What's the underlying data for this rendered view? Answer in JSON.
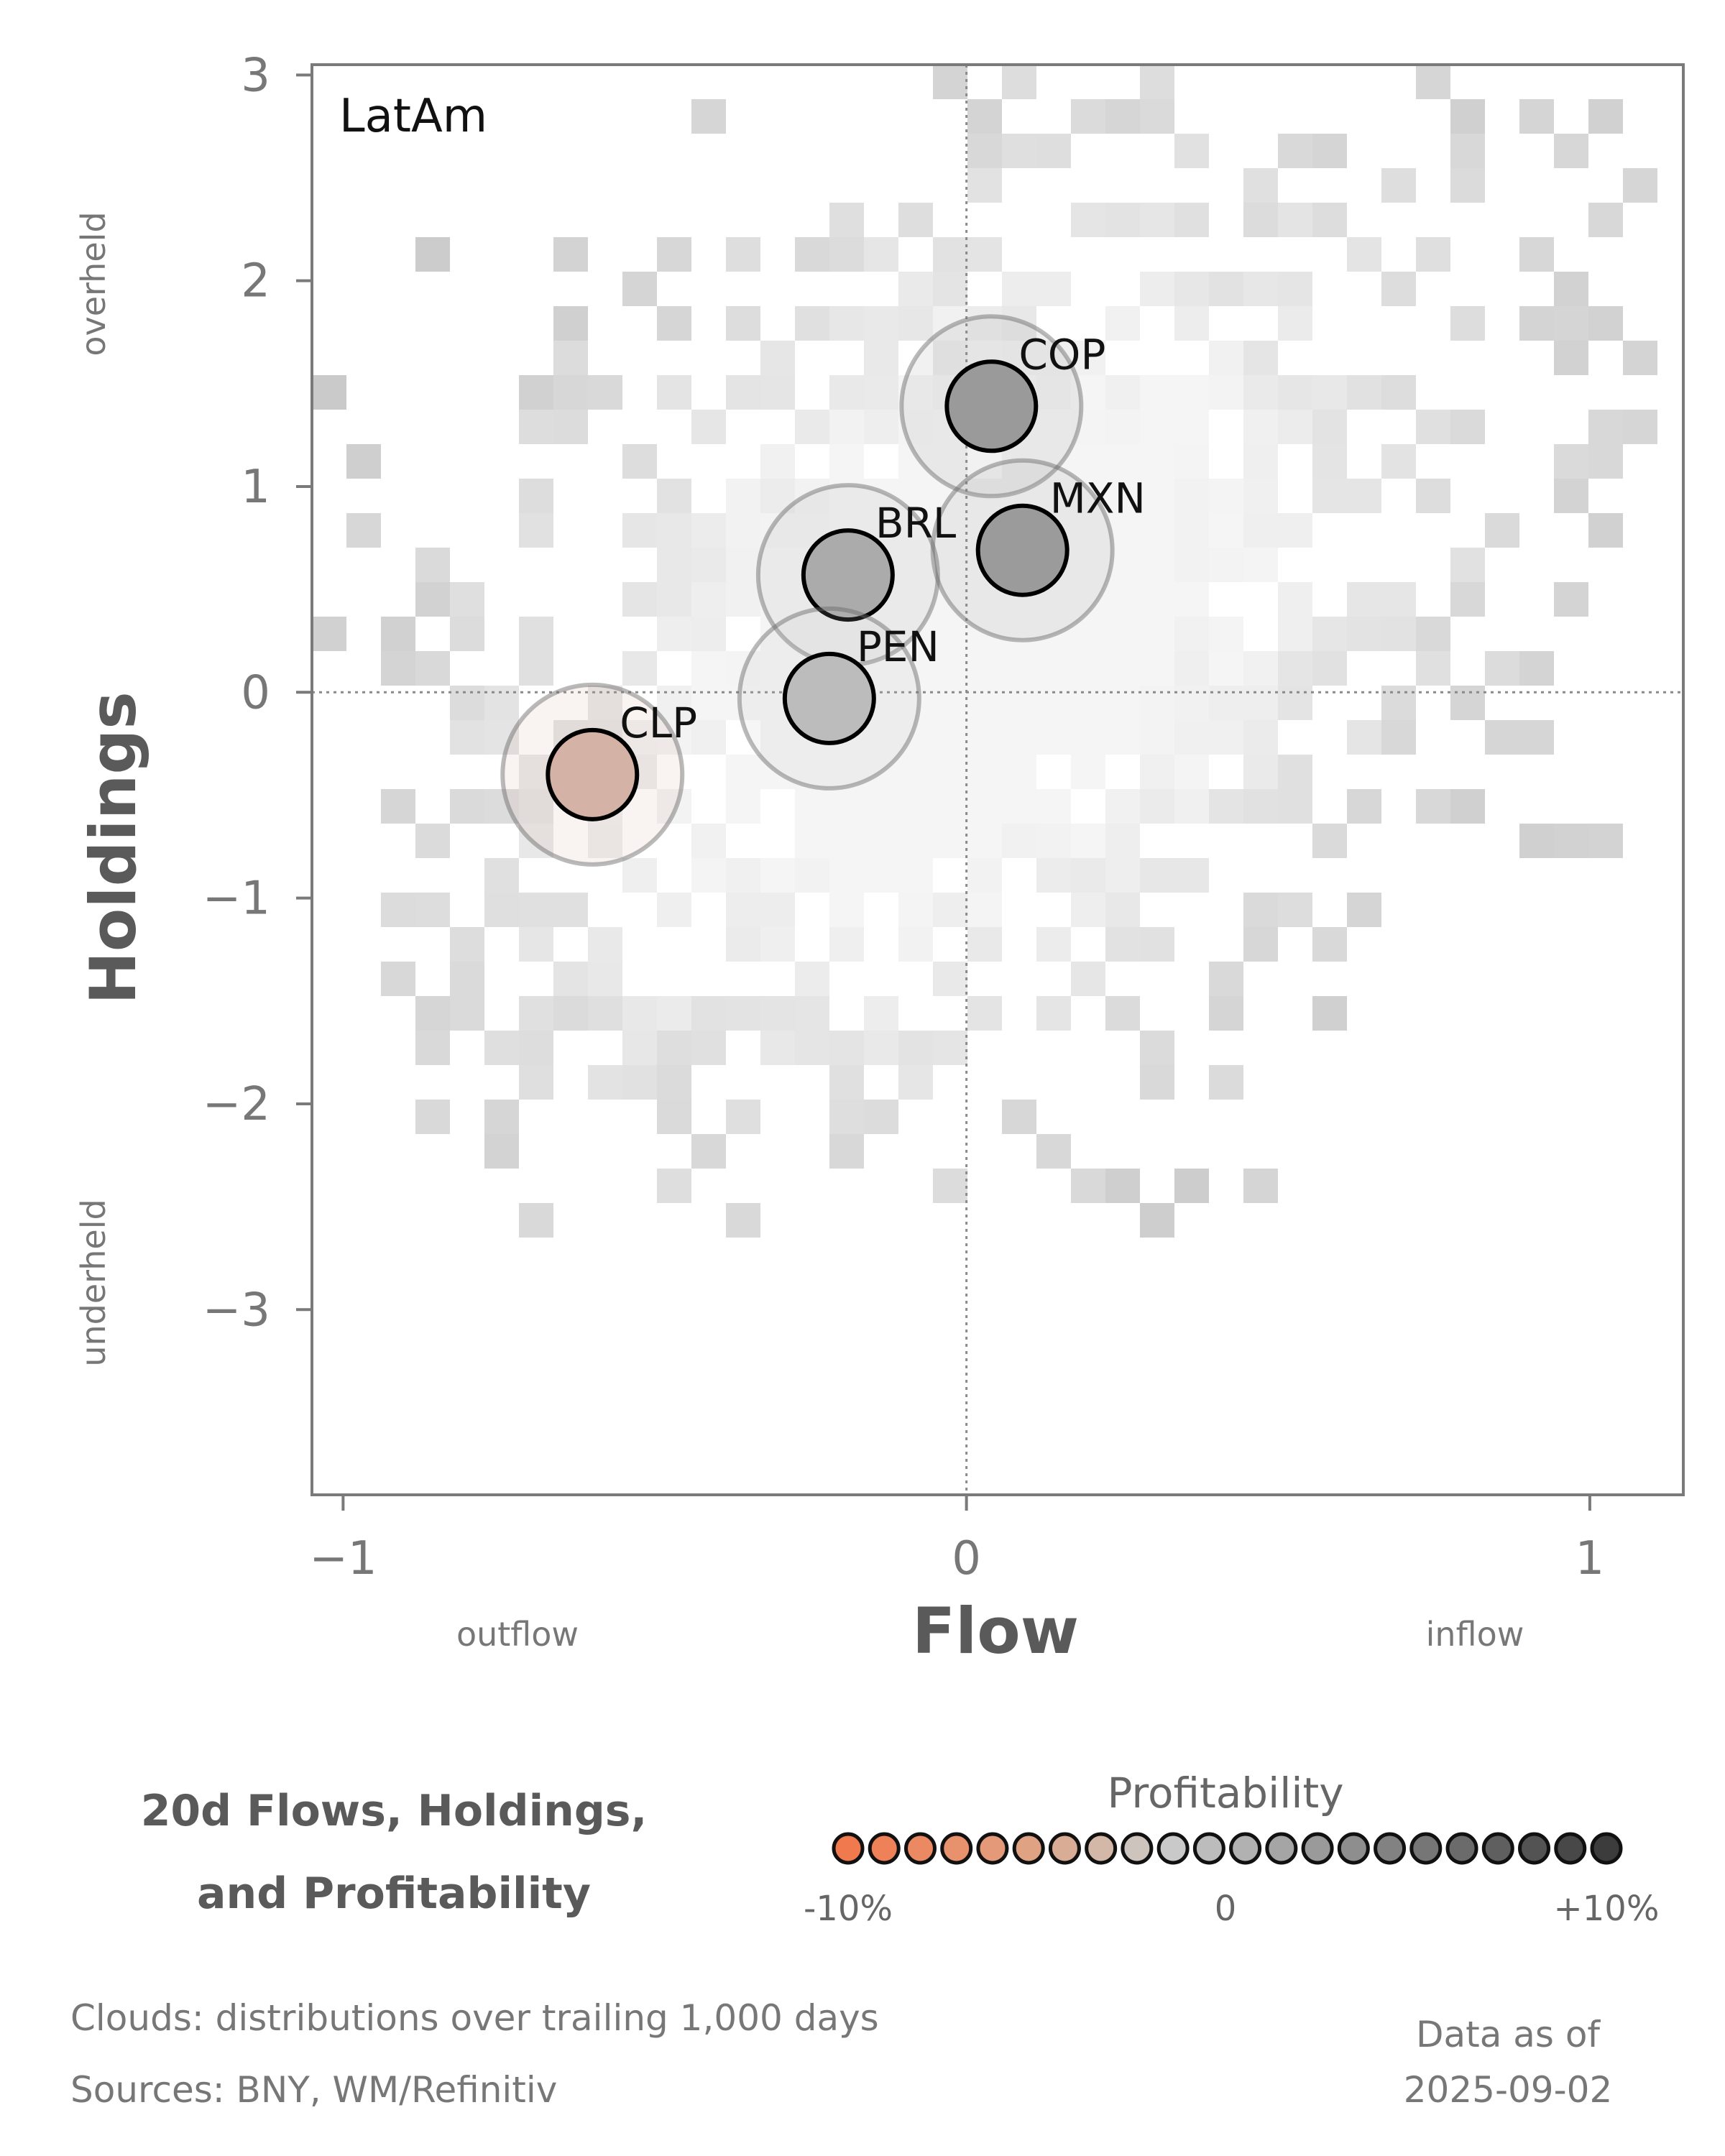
{
  "chart_data": {
    "type": "scatter",
    "panel_label": "LatAm",
    "xlabel": "Flow",
    "ylabel": "Holdings",
    "xlim": [
      -1.05,
      1.15
    ],
    "ylim": [
      -3.9,
      3.05
    ],
    "xticks": [
      {
        "value": -1,
        "label": "−1"
      },
      {
        "value": 0,
        "label": "0"
      },
      {
        "value": 1,
        "label": "1"
      }
    ],
    "yticks": [
      {
        "value": 3,
        "label": "3"
      },
      {
        "value": 2,
        "label": "2"
      },
      {
        "value": 1,
        "label": "1"
      },
      {
        "value": 0,
        "label": "0"
      },
      {
        "value": -1,
        "label": "−1"
      },
      {
        "value": -2,
        "label": "−2"
      },
      {
        "value": -3,
        "label": "−3"
      }
    ],
    "x_side_labels": {
      "left": "outflow",
      "right": "inflow"
    },
    "y_side_labels": {
      "top": "overheld",
      "bottom": "underheld"
    },
    "reference_lines": {
      "x": 0,
      "y": 0
    },
    "grid": false,
    "points": [
      {
        "label": "COP",
        "x": 0.04,
        "y": 1.39,
        "profitability": 4,
        "color": "#9a9a9a"
      },
      {
        "label": "MXN",
        "x": 0.09,
        "y": 0.69,
        "profitability": 4,
        "color": "#9b9b9b"
      },
      {
        "label": "BRL",
        "x": -0.19,
        "y": 0.57,
        "profitability": 2,
        "color": "#ababab"
      },
      {
        "label": "PEN",
        "x": -0.22,
        "y": -0.03,
        "profitability": 0,
        "color": "#bcbcbc"
      },
      {
        "label": "CLP",
        "x": -0.6,
        "y": -0.4,
        "profitability": -3,
        "color": "#d4b2a6"
      }
    ],
    "legend": {
      "title": "20d Flows, Holdings,\nand Profitability",
      "colorbar_title": "Profitability",
      "min_label": "-10%",
      "mid_label": "0",
      "max_label": "+10%",
      "colors": [
        "#f07a4e",
        "#ee8158",
        "#eb8963",
        "#e8916d",
        "#e49a78",
        "#df a384",
        "#d9ad95",
        "#d3b8a7",
        "#ccc4bd",
        "#c9c9c9",
        "#bcbcbc",
        "#b1b1b1",
        "#a5a5a5",
        "#9a9a9a",
        "#8e8e8e",
        "#828282",
        "#767676",
        "#6b6b6b",
        "#5f5f5f",
        "#535353",
        "#484848",
        "#3c3c3c"
      ]
    },
    "cloud_description": "Clouds:  distributions over trailing 1,000 days",
    "sources": "Sources:  BNY, WM/Refinitiv",
    "data_as_of_label": "Data as of",
    "data_as_of": "2025-09-02"
  }
}
